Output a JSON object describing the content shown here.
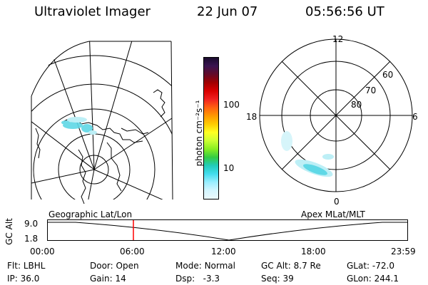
{
  "header": {
    "instrument": "Ultraviolet Imager",
    "date": "22 Jun 07",
    "time": "05:56:56 UT"
  },
  "colorbar": {
    "unit_label": "photon cm⁻²s⁻¹",
    "tick_labels": [
      "100",
      "10"
    ],
    "colors": [
      "#1a0b2e",
      "#3a1450",
      "#640a28",
      "#a00000",
      "#d80000",
      "#f02020",
      "#ff6010",
      "#ff9900",
      "#ffcc00",
      "#ffff22",
      "#ccff33",
      "#88ee22",
      "#33cc44",
      "#22ccbb",
      "#44ddee",
      "#99eeff",
      "#d4f6ff",
      "#eaf8fc"
    ]
  },
  "geo_panel": {
    "label": "Geographic Lat/Lon"
  },
  "polar_panel": {
    "label": "Apex MLat/MLT",
    "mlt_labels": {
      "top": "12",
      "left": "18",
      "right": "6",
      "bottom": "0"
    },
    "lat_labels": [
      "60",
      "70",
      "80"
    ]
  },
  "alt_plot": {
    "ylabel": "GC Alt",
    "yticks": [
      "9.0",
      "1.8"
    ],
    "xticks": [
      "00:00",
      "06:00",
      "12:00",
      "18:00",
      "23:59"
    ],
    "current_time_marker_color": "#ff0000"
  },
  "info": {
    "flt_label": "Flt:",
    "flt_value": "LBHL",
    "ip_label": "IP:",
    "ip_value": "36.0",
    "door_label": "Door:",
    "door_value": "Open",
    "gain_label": "Gain:",
    "gain_value": "14",
    "mode_label": "Mode:",
    "mode_value": "Normal",
    "dsp_label": "Dsp:",
    "dsp_value": "-3.3",
    "gcalt_label": "GC Alt:",
    "gcalt_value": "8.7 Re",
    "seq_label": "Seq:",
    "seq_value": "39",
    "glat_label": "GLat:",
    "glat_value": "-72.0",
    "glon_label": "GLon:",
    "glon_value": "244.1"
  }
}
